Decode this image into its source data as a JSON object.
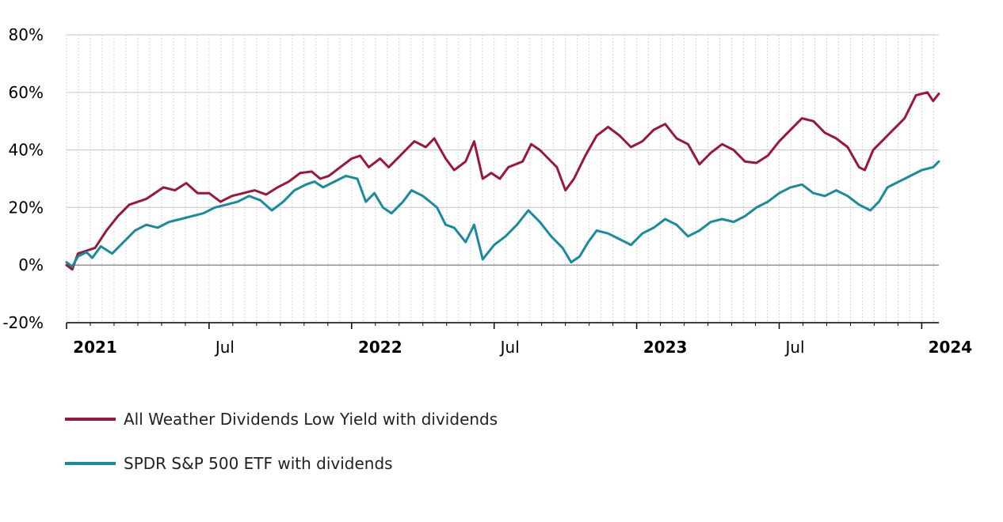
{
  "chart_data": {
    "type": "line",
    "title": "",
    "xlabel": "",
    "ylabel": "",
    "ylim": [
      -20,
      80
    ],
    "yticks": [
      -20,
      0,
      20,
      40,
      60,
      80
    ],
    "ytick_labels": [
      "-20%",
      "0%",
      "20%",
      "40%",
      "60%",
      "80%"
    ],
    "xlim": [
      2021.0,
      2024.06
    ],
    "xticks": [
      {
        "x": 2021.0,
        "label": "2021",
        "bold": true
      },
      {
        "x": 2021.5,
        "label": "Jul",
        "bold": false
      },
      {
        "x": 2022.0,
        "label": "2022",
        "bold": true
      },
      {
        "x": 2022.5,
        "label": "Jul",
        "bold": false
      },
      {
        "x": 2023.0,
        "label": "2023",
        "bold": true
      },
      {
        "x": 2023.5,
        "label": "Jul",
        "bold": false
      },
      {
        "x": 2024.0,
        "label": "2024",
        "bold": true
      }
    ],
    "grid": true,
    "legend_position": "bottom-left",
    "series": [
      {
        "name": "All Weather Dividends Low Yield with dividends",
        "color": "#99173c",
        "points": [
          [
            2021.0,
            0
          ],
          [
            2021.02,
            -1.5
          ],
          [
            2021.04,
            4
          ],
          [
            2021.07,
            5
          ],
          [
            2021.1,
            6
          ],
          [
            2021.14,
            12
          ],
          [
            2021.18,
            17
          ],
          [
            2021.22,
            21
          ],
          [
            2021.28,
            23
          ],
          [
            2021.34,
            27
          ],
          [
            2021.38,
            26
          ],
          [
            2021.42,
            28.5
          ],
          [
            2021.46,
            25
          ],
          [
            2021.5,
            25
          ],
          [
            2021.54,
            22
          ],
          [
            2021.58,
            24
          ],
          [
            2021.62,
            25
          ],
          [
            2021.66,
            26
          ],
          [
            2021.7,
            24.5
          ],
          [
            2021.74,
            27
          ],
          [
            2021.78,
            29
          ],
          [
            2021.82,
            32
          ],
          [
            2021.86,
            32.5
          ],
          [
            2021.89,
            30
          ],
          [
            2021.92,
            31
          ],
          [
            2021.96,
            34
          ],
          [
            2022.0,
            37
          ],
          [
            2022.03,
            38
          ],
          [
            2022.06,
            34
          ],
          [
            2022.1,
            37
          ],
          [
            2022.13,
            34
          ],
          [
            2022.17,
            38
          ],
          [
            2022.22,
            43
          ],
          [
            2022.26,
            41
          ],
          [
            2022.29,
            44
          ],
          [
            2022.33,
            37
          ],
          [
            2022.36,
            33
          ],
          [
            2022.4,
            36
          ],
          [
            2022.43,
            43
          ],
          [
            2022.46,
            30
          ],
          [
            2022.49,
            32
          ],
          [
            2022.52,
            30
          ],
          [
            2022.55,
            34
          ],
          [
            2022.6,
            36
          ],
          [
            2022.63,
            42
          ],
          [
            2022.66,
            40
          ],
          [
            2022.69,
            37
          ],
          [
            2022.72,
            34
          ],
          [
            2022.75,
            26
          ],
          [
            2022.78,
            30
          ],
          [
            2022.82,
            38
          ],
          [
            2022.86,
            45
          ],
          [
            2022.9,
            48
          ],
          [
            2022.94,
            45
          ],
          [
            2022.98,
            41
          ],
          [
            2023.02,
            43
          ],
          [
            2023.06,
            47
          ],
          [
            2023.1,
            49
          ],
          [
            2023.14,
            44
          ],
          [
            2023.18,
            42
          ],
          [
            2023.22,
            35
          ],
          [
            2023.26,
            39
          ],
          [
            2023.3,
            42
          ],
          [
            2023.34,
            40
          ],
          [
            2023.38,
            36
          ],
          [
            2023.42,
            35.5
          ],
          [
            2023.46,
            38
          ],
          [
            2023.5,
            43
          ],
          [
            2023.54,
            47
          ],
          [
            2023.58,
            51
          ],
          [
            2023.62,
            50
          ],
          [
            2023.66,
            46
          ],
          [
            2023.7,
            44
          ],
          [
            2023.74,
            41
          ],
          [
            2023.78,
            34
          ],
          [
            2023.8,
            33
          ],
          [
            2023.83,
            40
          ],
          [
            2023.86,
            43
          ],
          [
            2023.9,
            47
          ],
          [
            2023.94,
            51
          ],
          [
            2023.98,
            59
          ],
          [
            2024.02,
            60
          ],
          [
            2024.04,
            57
          ],
          [
            2024.06,
            59.5
          ]
        ]
      },
      {
        "name": "SPDR S&P 500 ETF with dividends",
        "color": "#1a8a9e",
        "points": [
          [
            2021.0,
            1
          ],
          [
            2021.02,
            -0.5
          ],
          [
            2021.04,
            3
          ],
          [
            2021.07,
            4.5
          ],
          [
            2021.09,
            2.5
          ],
          [
            2021.12,
            6.5
          ],
          [
            2021.16,
            4
          ],
          [
            2021.2,
            8
          ],
          [
            2021.24,
            12
          ],
          [
            2021.28,
            14
          ],
          [
            2021.32,
            13
          ],
          [
            2021.36,
            15
          ],
          [
            2021.4,
            16
          ],
          [
            2021.44,
            17
          ],
          [
            2021.48,
            18
          ],
          [
            2021.52,
            20
          ],
          [
            2021.56,
            21
          ],
          [
            2021.6,
            22
          ],
          [
            2021.64,
            24
          ],
          [
            2021.68,
            22.5
          ],
          [
            2021.72,
            19
          ],
          [
            2021.76,
            22
          ],
          [
            2021.8,
            26
          ],
          [
            2021.84,
            28
          ],
          [
            2021.87,
            29
          ],
          [
            2021.9,
            27
          ],
          [
            2021.94,
            29
          ],
          [
            2021.98,
            31
          ],
          [
            2022.02,
            30
          ],
          [
            2022.05,
            22
          ],
          [
            2022.08,
            25
          ],
          [
            2022.11,
            20
          ],
          [
            2022.14,
            18
          ],
          [
            2022.18,
            22
          ],
          [
            2022.21,
            26
          ],
          [
            2022.25,
            24
          ],
          [
            2022.3,
            20
          ],
          [
            2022.33,
            14
          ],
          [
            2022.36,
            13
          ],
          [
            2022.4,
            8
          ],
          [
            2022.43,
            14
          ],
          [
            2022.46,
            2
          ],
          [
            2022.5,
            7
          ],
          [
            2022.54,
            10
          ],
          [
            2022.58,
            14
          ],
          [
            2022.62,
            19
          ],
          [
            2022.66,
            15
          ],
          [
            2022.7,
            10
          ],
          [
            2022.74,
            6
          ],
          [
            2022.77,
            1
          ],
          [
            2022.8,
            3
          ],
          [
            2022.83,
            8
          ],
          [
            2022.86,
            12
          ],
          [
            2022.9,
            11
          ],
          [
            2022.94,
            9
          ],
          [
            2022.98,
            7
          ],
          [
            2023.02,
            11
          ],
          [
            2023.06,
            13
          ],
          [
            2023.1,
            16
          ],
          [
            2023.14,
            14
          ],
          [
            2023.18,
            10
          ],
          [
            2023.22,
            12
          ],
          [
            2023.26,
            15
          ],
          [
            2023.3,
            16
          ],
          [
            2023.34,
            15
          ],
          [
            2023.38,
            17
          ],
          [
            2023.42,
            20
          ],
          [
            2023.46,
            22
          ],
          [
            2023.5,
            25
          ],
          [
            2023.54,
            27
          ],
          [
            2023.58,
            28
          ],
          [
            2023.62,
            25
          ],
          [
            2023.66,
            24
          ],
          [
            2023.7,
            26
          ],
          [
            2023.74,
            24
          ],
          [
            2023.78,
            21
          ],
          [
            2023.82,
            19
          ],
          [
            2023.85,
            22
          ],
          [
            2023.88,
            27
          ],
          [
            2023.92,
            29
          ],
          [
            2023.96,
            31
          ],
          [
            2024.0,
            33
          ],
          [
            2024.04,
            34
          ],
          [
            2024.06,
            36
          ]
        ]
      }
    ]
  }
}
